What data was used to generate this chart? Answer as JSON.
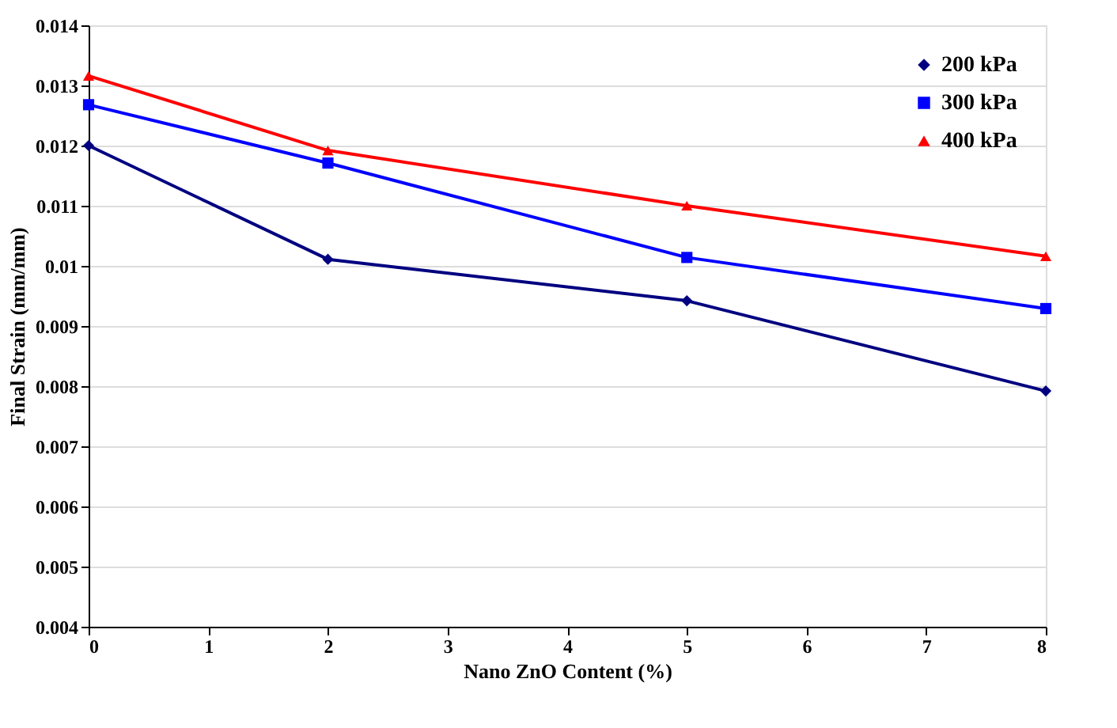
{
  "chart_data": {
    "type": "line",
    "xlabel": "Nano ZnO Content (%)",
    "ylabel": "Final Strain (mm/mm)",
    "x": [
      0,
      2,
      5,
      8
    ],
    "series": [
      {
        "name": "200 kPa",
        "color": "#000080",
        "marker": "diamond",
        "values": [
          0.012,
          0.01011,
          0.00942,
          0.00792
        ]
      },
      {
        "name": "300 kPa",
        "color": "#0000ff",
        "marker": "square",
        "values": [
          0.01268,
          0.01171,
          0.01014,
          0.00929
        ]
      },
      {
        "name": "400 kPa",
        "color": "#ff0000",
        "marker": "triangle",
        "values": [
          0.01316,
          0.01192,
          0.011,
          0.01016
        ]
      }
    ],
    "xlim": [
      0,
      8
    ],
    "xticks": [
      0,
      1,
      2,
      3,
      4,
      5,
      6,
      7,
      8
    ],
    "ylim": [
      0.004,
      0.014
    ],
    "yticks": [
      0.004,
      0.005,
      0.006,
      0.007,
      0.008,
      0.009,
      0.01,
      0.011,
      0.012,
      0.013,
      0.014
    ],
    "grid": "y",
    "legend": "top right",
    "line_style": "solid"
  }
}
